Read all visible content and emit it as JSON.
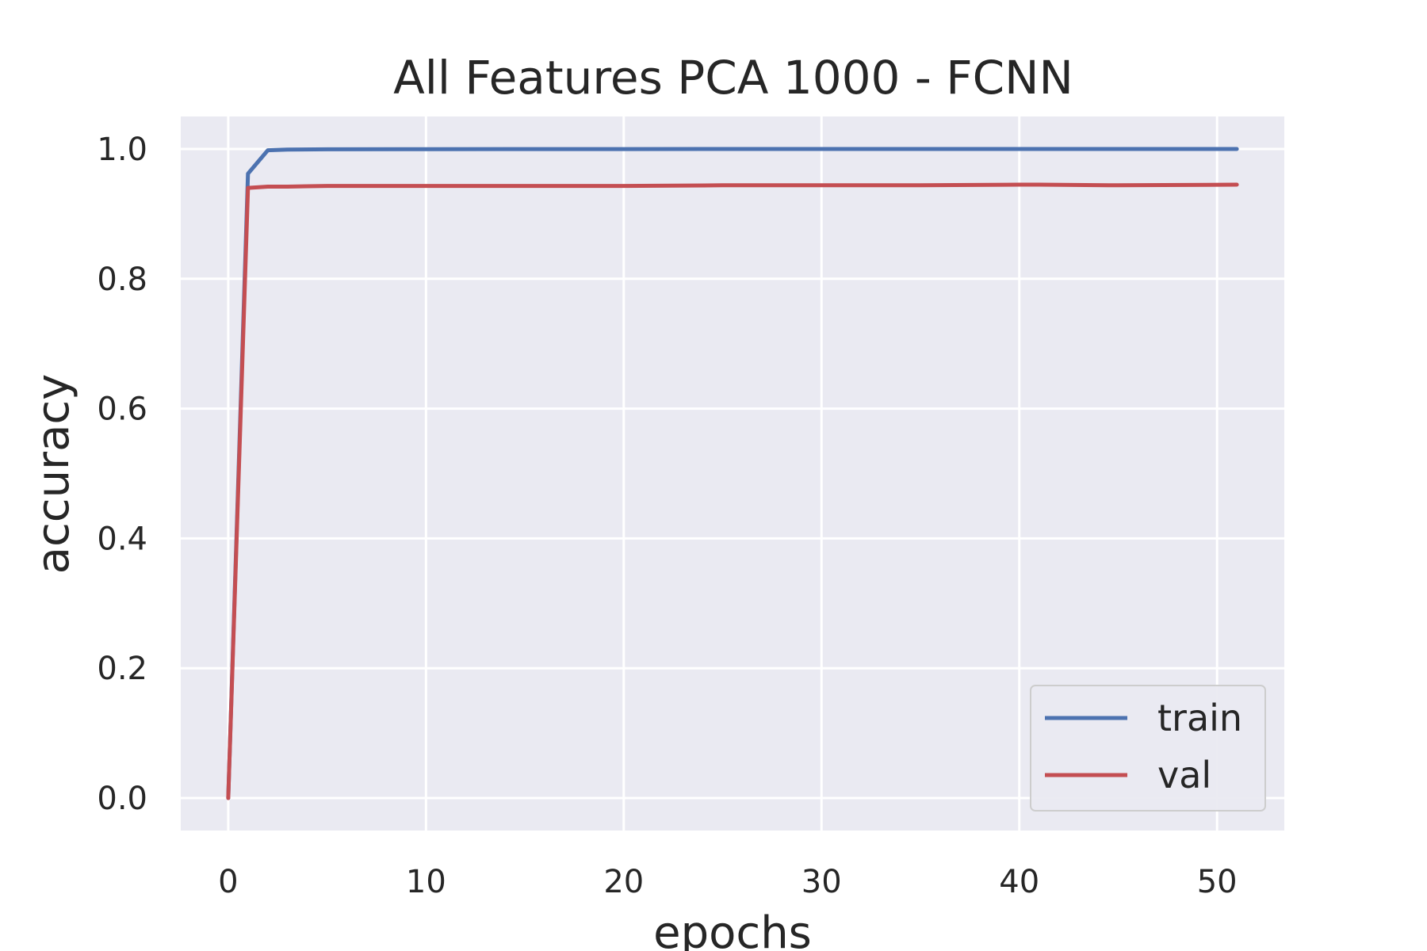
{
  "chart_data": {
    "type": "line",
    "title": "All Features PCA 1000 - FCNN",
    "xlabel": "epochs",
    "ylabel": "accuracy",
    "xlim": [
      -2.4,
      53.4
    ],
    "ylim": [
      -0.05,
      1.05
    ],
    "xticks": [
      0,
      10,
      20,
      30,
      40,
      50
    ],
    "xtick_labels": [
      "0",
      "10",
      "20",
      "30",
      "40",
      "50"
    ],
    "yticks": [
      0.0,
      0.2,
      0.4,
      0.6,
      0.8,
      1.0
    ],
    "ytick_labels": [
      "0.0",
      "0.2",
      "0.4",
      "0.6",
      "0.8",
      "1.0"
    ],
    "grid": true,
    "legend_position": "lower-right",
    "series": [
      {
        "name": "train",
        "color": "#4c72b0",
        "x": [
          0,
          1,
          2,
          3,
          5,
          10,
          20,
          30,
          40,
          51
        ],
        "y": [
          0.0,
          0.962,
          0.998,
          0.999,
          0.9995,
          0.9997,
          0.9998,
          0.9999,
          0.9999,
          0.9999
        ]
      },
      {
        "name": "val",
        "color": "#c44e52",
        "x": [
          0,
          1,
          2,
          3,
          5,
          7,
          10,
          15,
          20,
          25,
          30,
          35,
          40,
          41,
          45,
          51
        ],
        "y": [
          0.0,
          0.94,
          0.942,
          0.942,
          0.943,
          0.943,
          0.943,
          0.943,
          0.943,
          0.944,
          0.944,
          0.944,
          0.945,
          0.945,
          0.944,
          0.945
        ]
      }
    ]
  }
}
